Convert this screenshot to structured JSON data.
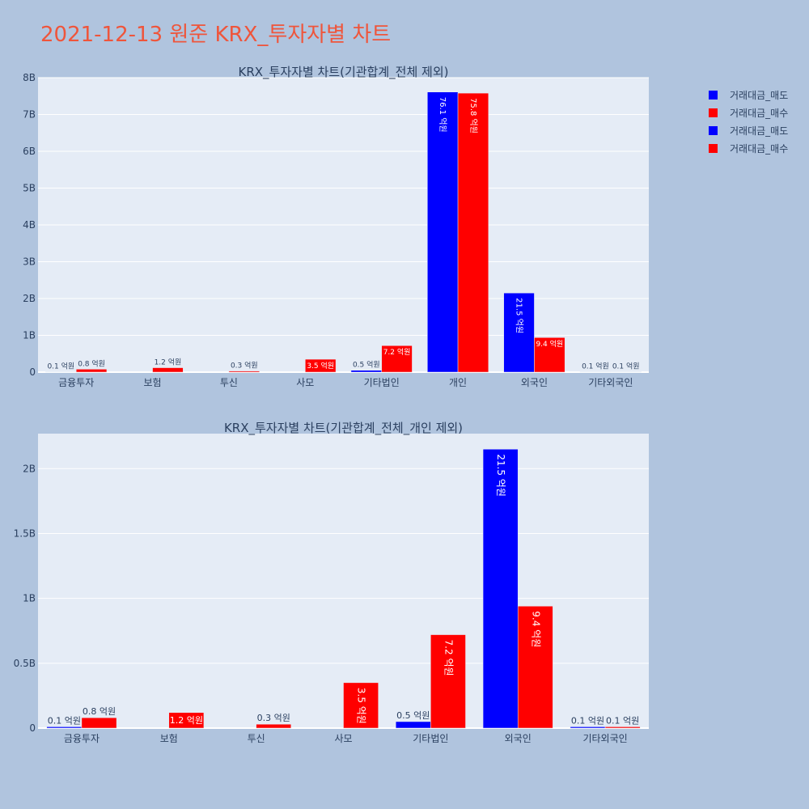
{
  "page_title": "2021-12-13 원준 KRX_투자자별 차트",
  "colors": {
    "sell": "#0000ff",
    "buy": "#ff0000",
    "plot_bg": "#e5ecf6",
    "page_bg": "#b0c4de",
    "text": "#2a3f5f",
    "title": "#ef553b"
  },
  "legend": {
    "placement": "top-right",
    "items": [
      {
        "label": "거래대금_매도",
        "color": "#0000ff"
      },
      {
        "label": "거래대금_매수",
        "color": "#ff0000"
      },
      {
        "label": "거래대금_매도",
        "color": "#0000ff"
      },
      {
        "label": "거래대금_매수",
        "color": "#ff0000"
      }
    ]
  },
  "chart_data": [
    {
      "type": "bar",
      "title": "KRX_투자자별 차트(기관합계_전체 제외)",
      "categories": [
        "금융투자",
        "보험",
        "투신",
        "사모",
        "기타법인",
        "개인",
        "외국인",
        "기타외국인"
      ],
      "ylim": [
        0,
        8000000000
      ],
      "yticks": [
        0,
        1000000000,
        2000000000,
        3000000000,
        4000000000,
        5000000000,
        6000000000,
        7000000000,
        8000000000
      ],
      "ytick_labels": [
        "0",
        "1B",
        "2B",
        "3B",
        "4B",
        "5B",
        "6B",
        "7B",
        "8B"
      ],
      "grid": true,
      "series": [
        {
          "name": "거래대금_매도",
          "color": "#0000ff",
          "values": [
            10000000,
            0,
            0,
            0,
            50000000,
            7610000000,
            2150000000,
            10000000
          ],
          "labels": [
            "0.1 억원",
            "",
            "",
            "",
            "0.5 억원",
            "76.1 억원",
            "21.5 억원",
            "0.1 억원"
          ]
        },
        {
          "name": "거래대금_매수",
          "color": "#ff0000",
          "values": [
            80000000,
            120000000,
            30000000,
            350000000,
            720000000,
            7580000000,
            940000000,
            10000000
          ],
          "labels": [
            "0.8 억원",
            "1.2 억원",
            "0.3 억원",
            "3.5 억원",
            "7.2 억원",
            "75.8 억원",
            "9.4 억원",
            "0.1 억원"
          ]
        }
      ]
    },
    {
      "type": "bar",
      "title": "KRX_투자자별 차트(기관합계_전체_개인 제외)",
      "categories": [
        "금융투자",
        "보험",
        "투신",
        "사모",
        "기타법인",
        "외국인",
        "기타외국인"
      ],
      "ylim": [
        0,
        2270000000
      ],
      "yticks": [
        0,
        500000000,
        1000000000,
        1500000000,
        2000000000
      ],
      "ytick_labels": [
        "0",
        "0.5B",
        "1B",
        "1.5B",
        "2B"
      ],
      "grid": true,
      "series": [
        {
          "name": "거래대금_매도",
          "color": "#0000ff",
          "values": [
            10000000,
            0,
            0,
            0,
            50000000,
            2150000000,
            10000000
          ],
          "labels": [
            "0.1 억원",
            "",
            "",
            "",
            "0.5 억원",
            "21.5 억원",
            "0.1 억원"
          ]
        },
        {
          "name": "거래대금_매수",
          "color": "#ff0000",
          "values": [
            80000000,
            120000000,
            30000000,
            350000000,
            720000000,
            940000000,
            10000000
          ],
          "labels": [
            "0.8 억원",
            "1.2 억원",
            "0.3 억원",
            "3.5 억원",
            "7.2 억원",
            "9.4 억원",
            "0.1 억원"
          ]
        }
      ]
    }
  ]
}
